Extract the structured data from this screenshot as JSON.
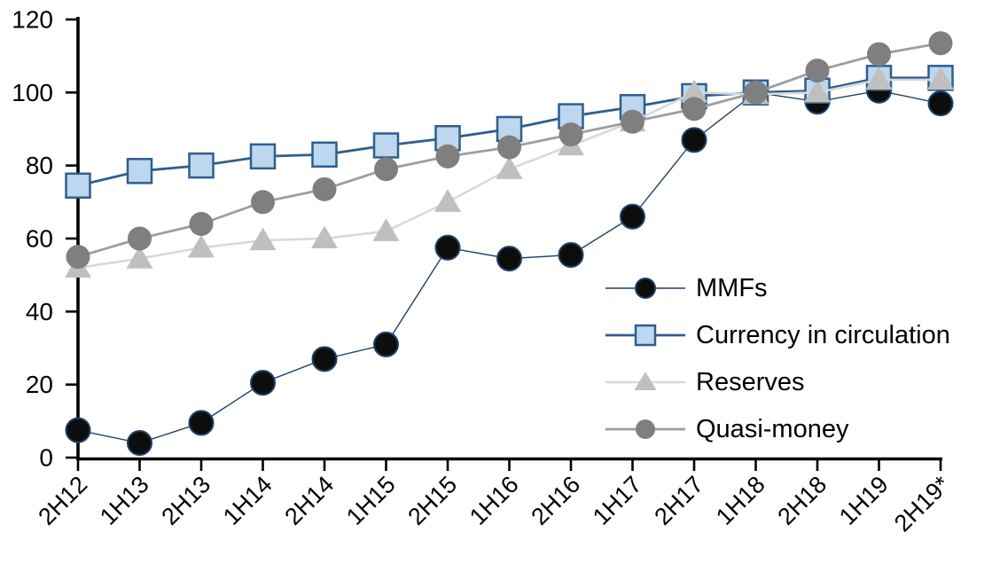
{
  "chart_data": {
    "type": "line",
    "title": "",
    "xlabel": "",
    "ylabel": "",
    "grid": false,
    "ylim": [
      0,
      120
    ],
    "ytick_step": 20,
    "ytick_labels": [
      "0",
      "20",
      "40",
      "60",
      "80",
      "100",
      "120"
    ],
    "categories": [
      "2H12",
      "1H13",
      "2H13",
      "1H14",
      "2H14",
      "1H15",
      "2H15",
      "1H16",
      "2H16",
      "1H17",
      "2H17",
      "1H18",
      "2H18",
      "1H19",
      "2H19*"
    ],
    "series": [
      {
        "name": "MMFs",
        "slug": "mmfs",
        "marker": "circle",
        "marker_fill": "#0d0d0d",
        "marker_stroke": "#1f4068",
        "line_color": "#1f4068",
        "line_width": 1.4,
        "values": [
          7.5,
          4,
          9.5,
          20.5,
          27,
          31,
          57.5,
          54.5,
          55.5,
          66,
          87,
          100,
          97.5,
          100.5,
          97
        ]
      },
      {
        "name": "Currency in circulation",
        "slug": "currency-in-circulation",
        "marker": "square",
        "marker_fill": "#bdd7ee",
        "marker_stroke": "#2e5e8e",
        "line_color": "#2e5e8e",
        "line_width": 2.8,
        "values": [
          74.5,
          78.5,
          80,
          82.5,
          83,
          85.5,
          87.5,
          90,
          93.5,
          96,
          99,
          100,
          100.5,
          104,
          104
        ]
      },
      {
        "name": "Reserves",
        "slug": "reserves",
        "marker": "triangle",
        "marker_fill": "#bfbfbf",
        "marker_stroke": "none",
        "line_color": "#d9d9d9",
        "line_width": 2.6,
        "values": [
          52,
          54.5,
          57.5,
          59.5,
          60,
          62,
          70,
          79,
          85.5,
          92,
          100,
          99.5,
          100,
          103.5,
          103.5
        ]
      },
      {
        "name": "Quasi-money",
        "slug": "quasi-money",
        "marker": "circle",
        "marker_fill": "#7f7f7f",
        "marker_stroke": "none",
        "line_color": "#9e9e9e",
        "line_width": 2.8,
        "values": [
          55,
          60,
          64,
          70,
          73.5,
          79,
          82.5,
          85,
          88.5,
          92,
          95.5,
          100,
          106,
          110.5,
          113.5
        ]
      }
    ],
    "legend_position": "inside-right",
    "axis_color": "#000000"
  }
}
